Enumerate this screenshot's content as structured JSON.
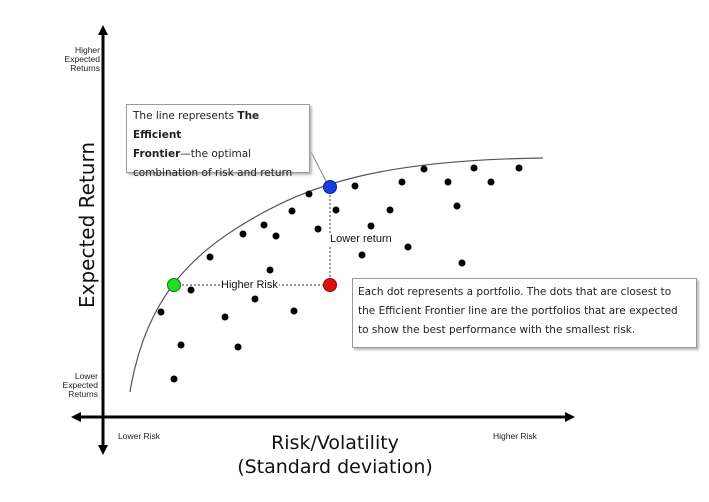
{
  "y_axis": {
    "title": "Expected Return",
    "top_label": [
      "Higher",
      "Expected",
      "Returns"
    ],
    "bottom_label": [
      "Lower",
      "Expected",
      "Returns"
    ]
  },
  "x_axis": {
    "title_line1": "Risk/Volatility",
    "title_line2": "(Standard deviation)",
    "left_label": "Lower Risk",
    "right_label": "Higher Risk"
  },
  "frontier_callout": {
    "line1_prefix": "The line represents ",
    "line1_bold": "The Efficient",
    "line2_bold": "Frontier",
    "line2_suffix": "—the optimal",
    "line3": "combination of risk and return"
  },
  "dots_callout": {
    "line1": "Each dot represents a portfolio. The dots that are closest to",
    "line2": "the Efficient Frontier line are the portfolios that are expected",
    "line3": "to show the best performance with the smallest risk."
  },
  "labels": {
    "higher_risk": "Higher Risk",
    "lower_return": "Lower return"
  },
  "colors": {
    "frontier_point": "#1a3fe0",
    "risky_point": "#e01010",
    "efficient_point": "#22dd22",
    "portfolio_dot": "#000000",
    "frontier_line": "#555555"
  }
}
